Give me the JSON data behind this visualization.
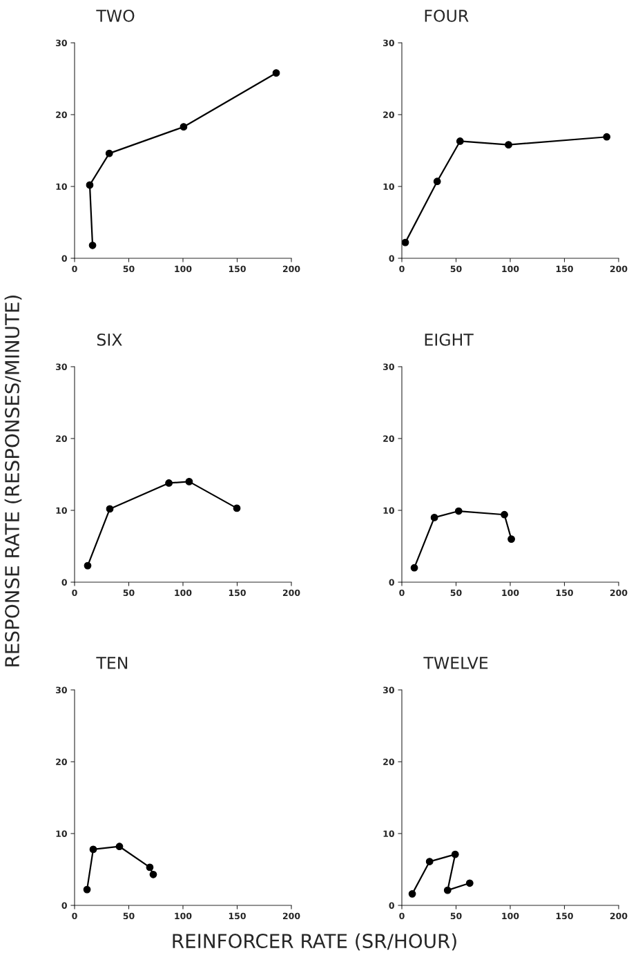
{
  "chart_data": [
    {
      "type": "line",
      "title": "TWO",
      "ylabel": "RESPONSE RATE (RESPONSES/MINUTE)",
      "x": [
        16.6,
        14,
        32,
        100.6,
        186
      ],
      "series": [
        {
          "color": "#000000",
          "values": [
            1.8,
            10.2,
            14.6,
            18.3,
            25.8
          ]
        }
      ],
      "xlim": [
        0,
        200
      ],
      "ylim": [
        0,
        30
      ],
      "xticks": [
        0,
        50,
        100,
        150,
        200
      ],
      "yticks": [
        0,
        10,
        20,
        30
      ],
      "marker": "circle",
      "line_style": "solid",
      "grid": false
    },
    {
      "type": "line",
      "title": "FOUR",
      "x": [
        3.2,
        32.6,
        53.7,
        98.4,
        189
      ],
      "series": [
        {
          "color": "#000000",
          "values": [
            2.2,
            10.7,
            16.3,
            15.8,
            16.9
          ]
        }
      ],
      "xlim": [
        0,
        200
      ],
      "ylim": [
        0,
        30
      ],
      "xticks": [
        0,
        50,
        100,
        150,
        200
      ],
      "yticks": [
        0,
        10,
        20,
        30
      ],
      "marker": "circle",
      "line_style": "solid",
      "grid": false
    },
    {
      "type": "line",
      "title": "SIX",
      "x": [
        12.1,
        32.5,
        87,
        105.7,
        149.7
      ],
      "series": [
        {
          "color": "#000000",
          "values": [
            2.3,
            10.2,
            13.8,
            14.0,
            10.3
          ]
        }
      ],
      "xlim": [
        0,
        200
      ],
      "ylim": [
        0,
        30
      ],
      "xticks": [
        0,
        50,
        100,
        150,
        200
      ],
      "yticks": [
        0,
        10,
        20,
        30
      ],
      "marker": "circle",
      "line_style": "solid",
      "grid": false
    },
    {
      "type": "line",
      "title": "EIGHT",
      "x": [
        11.5,
        30,
        52.4,
        94.6,
        101
      ],
      "series": [
        {
          "color": "#000000",
          "values": [
            2.0,
            9.0,
            9.9,
            9.4,
            6.0
          ]
        }
      ],
      "xlim": [
        0,
        200
      ],
      "ylim": [
        0,
        30
      ],
      "xticks": [
        0,
        50,
        100,
        150,
        200
      ],
      "yticks": [
        0,
        10,
        20,
        30
      ],
      "marker": "circle",
      "line_style": "solid",
      "grid": false
    },
    {
      "type": "line",
      "title": "TEN",
      "xlabel": "REINFORCER RATE (SR/HOUR)",
      "x": [
        11.5,
        17.2,
        41.4,
        69.4,
        72.6
      ],
      "series": [
        {
          "color": "#000000",
          "values": [
            2.2,
            7.8,
            8.2,
            5.3,
            4.3
          ]
        }
      ],
      "xlim": [
        0,
        200
      ],
      "ylim": [
        0,
        30
      ],
      "xticks": [
        0,
        50,
        100,
        150,
        200
      ],
      "yticks": [
        0,
        10,
        20,
        30
      ],
      "marker": "circle",
      "line_style": "solid",
      "grid": false
    },
    {
      "type": "line",
      "title": "TWELVE",
      "x": [
        9.6,
        25.6,
        49.2,
        42.2,
        62.6
      ],
      "series": [
        {
          "color": "#000000",
          "values": [
            1.6,
            6.1,
            7.1,
            2.1,
            3.1
          ]
        }
      ],
      "xlim": [
        0,
        200
      ],
      "ylim": [
        0,
        30
      ],
      "xticks": [
        0,
        50,
        100,
        150,
        200
      ],
      "yticks": [
        0,
        10,
        20,
        30
      ],
      "marker": "circle",
      "line_style": "solid",
      "grid": false
    }
  ]
}
